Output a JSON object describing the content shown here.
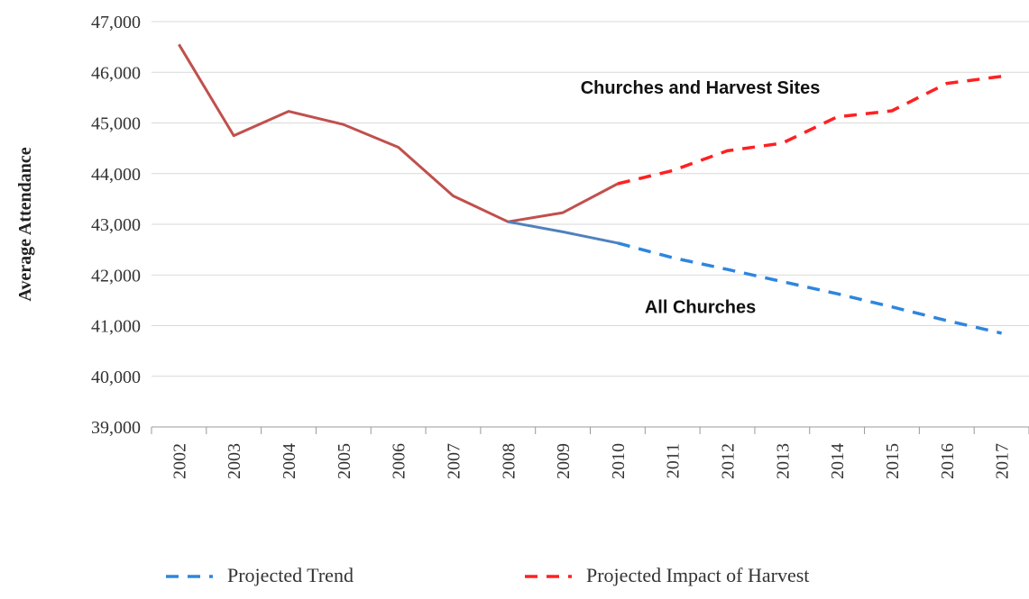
{
  "chart_data": {
    "type": "line",
    "xlabel": "",
    "ylabel": "Average Attendance",
    "ylim": [
      39000,
      47000
    ],
    "ytick_labels": [
      "39,000",
      "40,000",
      "41,000",
      "42,000",
      "43,000",
      "44,000",
      "45,000",
      "46,000",
      "47,000"
    ],
    "categories": [
      "2002",
      "2003",
      "2004",
      "2005",
      "2006",
      "2007",
      "2008",
      "2009",
      "2010",
      "2011",
      "2012",
      "2013",
      "2014",
      "2015",
      "2016",
      "2017"
    ],
    "grid": "horizontal",
    "legend_position": "bottom",
    "series": [
      {
        "key": "actual_churches_and_harvest",
        "style": "solid",
        "color": "#c0504d",
        "x": [
          "2002",
          "2003",
          "2004",
          "2005",
          "2006",
          "2007",
          "2008",
          "2009",
          "2010"
        ],
        "values": [
          46550,
          44750,
          45230,
          44970,
          44520,
          43560,
          43050,
          43230,
          43800
        ]
      },
      {
        "key": "actual_all_churches",
        "style": "solid",
        "color": "#4f81bd",
        "x": [
          "2008",
          "2009",
          "2010"
        ],
        "values": [
          43050,
          42850,
          42630
        ]
      },
      {
        "name": "Projected Trend",
        "style": "dashed",
        "color": "#2e86de",
        "x": [
          "2010",
          "2011",
          "2012",
          "2013",
          "2014",
          "2015",
          "2016",
          "2017"
        ],
        "values": [
          42630,
          42340,
          42110,
          41870,
          41630,
          41370,
          41100,
          40850
        ]
      },
      {
        "name": "Projected Impact of Harvest",
        "style": "dashed",
        "color": "#ff2020",
        "x": [
          "2010",
          "2011",
          "2012",
          "2013",
          "2014",
          "2015",
          "2016",
          "2017"
        ],
        "values": [
          43800,
          44060,
          44450,
          44600,
          45120,
          45240,
          45780,
          45920
        ]
      }
    ],
    "annotations": [
      {
        "text": "Churches and Harvest Sites",
        "x": "2012",
        "y": 45700
      },
      {
        "text": "All Churches",
        "x": "2012",
        "y": 41370
      }
    ]
  }
}
